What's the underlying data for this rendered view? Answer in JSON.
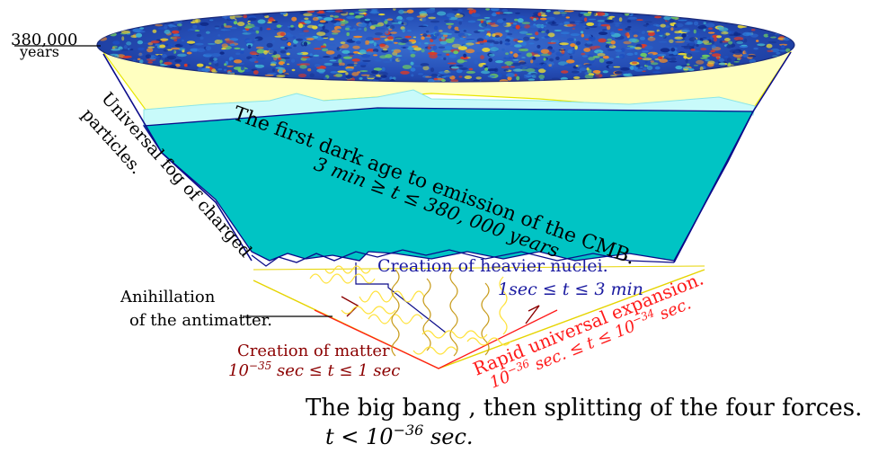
{
  "labels": {
    "cmb_time": "380,000",
    "cmb_unit": "years",
    "fog_line1": "Universal fog of charged",
    "fog_line2": "particles.",
    "dark_age_title": "The first dark age to emission of the CMB.",
    "dark_age_range": "3 min ≥ t ≤ 380, 000 years",
    "heavier_nuclei": "Creation of heavier nuclei.",
    "nuclei_range": "1sec ≤ t ≤ 3 min",
    "anihillation_line1": "Anihillation",
    "anihillation_line2": "of the antimatter.",
    "rapid_expansion": "Rapid universal expansion.",
    "rapid_range_base1": "10",
    "rapid_range_exp1": "−36",
    "rapid_range_mid": " sec. ≤ t ≤ 10",
    "rapid_range_exp2": "−34",
    "rapid_range_end": " sec.",
    "matter_title": "Creation of matter",
    "matter_range_base": "10",
    "matter_range_exp": "−35",
    "matter_range_rest": " sec ≤ t ≤ 1 sec",
    "bigbang_line1": "The big bang , then splitting of the four forces.",
    "bigbang_t": "t < 10",
    "bigbang_exp": "−36",
    "bigbang_unit": " sec."
  },
  "colors": {
    "cmb_bg": "#1c3ea8",
    "fog_band": "#ffffc0",
    "light_cyan": "#c8fafa",
    "cyan_body": "#00c4c4",
    "navy": "#0b0b8a",
    "dark_red": "#8b0000",
    "red": "#ff1a1a",
    "yellow": "#ffe23a",
    "gold": "#c89b1a"
  }
}
